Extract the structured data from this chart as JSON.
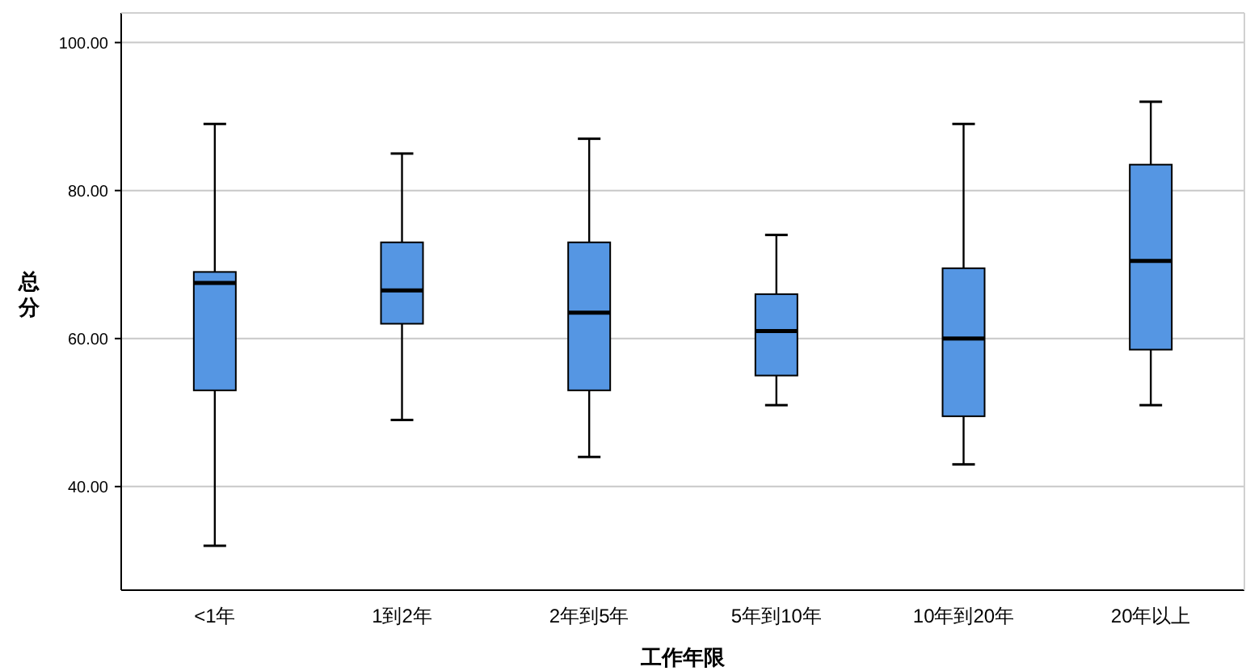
{
  "chart_data": {
    "type": "box",
    "xlabel": "工作年限",
    "ylabel": "总分",
    "categories": [
      "<1年",
      "1到2年",
      "2年到5年",
      "5年到10年",
      "10年到20年",
      "20年以上"
    ],
    "color": "#5596e3",
    "boxes": [
      {
        "low": 32,
        "q1": 53,
        "median": 67.5,
        "q3": 69,
        "high": 89
      },
      {
        "low": 49,
        "q1": 62,
        "median": 66.5,
        "q3": 73,
        "high": 85
      },
      {
        "low": 44,
        "q1": 53,
        "median": 63.5,
        "q3": 73,
        "high": 87
      },
      {
        "low": 51,
        "q1": 55,
        "median": 61,
        "q3": 66,
        "high": 74
      },
      {
        "low": 43,
        "q1": 49.5,
        "median": 60,
        "q3": 69.5,
        "high": 89
      },
      {
        "low": 51,
        "q1": 58.5,
        "median": 70.5,
        "q3": 83.5,
        "high": 92
      }
    ],
    "ylim": [
      26,
      104
    ],
    "yticks": [
      {
        "value": 40,
        "label": "40.00"
      },
      {
        "value": 60,
        "label": "60.00"
      },
      {
        "value": 80,
        "label": "80.00"
      },
      {
        "value": 100,
        "label": "100.00"
      }
    ],
    "grid": "y"
  }
}
